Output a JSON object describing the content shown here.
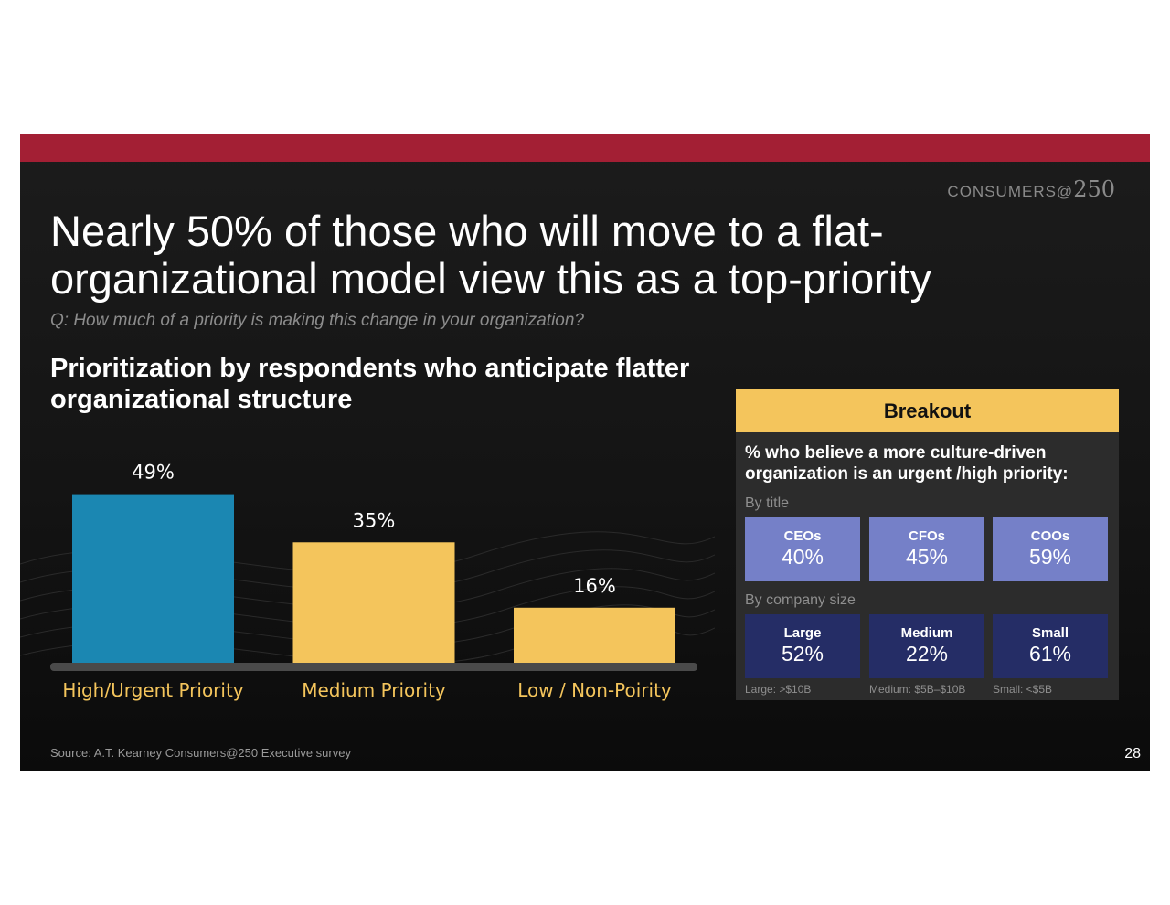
{
  "logo": {
    "text": "CONSUMERS@",
    "number": "250"
  },
  "title": "Nearly 50% of those who will move to a flat-organizational model view this as a top-priority",
  "question": "Q: How much of a priority is making this change in your organization?",
  "chart_data": {
    "type": "bar",
    "title": "Prioritization by respondents who anticipate flatter organizational structure",
    "categories": [
      "High/Urgent Priority",
      "Medium Priority",
      "Low / Non-Poirity"
    ],
    "values": [
      49,
      35,
      16
    ],
    "data_labels": [
      "49%",
      "35%",
      "16%"
    ],
    "colors": [
      "#1b87b2",
      "#f4c55c",
      "#f4c55c"
    ],
    "xlabel": "",
    "ylabel": "",
    "ylim": [
      0,
      55
    ],
    "grid": false,
    "legend": "none"
  },
  "breakout": {
    "header": "Breakout",
    "question": "% who believe a more culture-driven organization  is an urgent /high priority:",
    "by_title_label": "By title",
    "by_title": [
      {
        "label": "CEOs",
        "value": "40%"
      },
      {
        "label": "CFOs",
        "value": "45%"
      },
      {
        "label": "COOs",
        "value": "59%"
      }
    ],
    "by_size_label": "By company size",
    "by_size": [
      {
        "label": "Large",
        "value": "52%"
      },
      {
        "label": "Medium",
        "value": "22%"
      },
      {
        "label": "Small",
        "value": "61%"
      }
    ],
    "footnotes": [
      "Large: >$10B",
      "Medium: $5B–$10B",
      "Small: <$5B"
    ],
    "colors": {
      "header": "#f4c55c",
      "title_tiles": "#7580c8",
      "size_tiles": "#252d66"
    }
  },
  "source": "Source: A.T. Kearney Consumers@250 Executive survey",
  "page_number": "28",
  "colors": {
    "top_bar": "#a31f34",
    "category_label": "#f4c55c"
  }
}
